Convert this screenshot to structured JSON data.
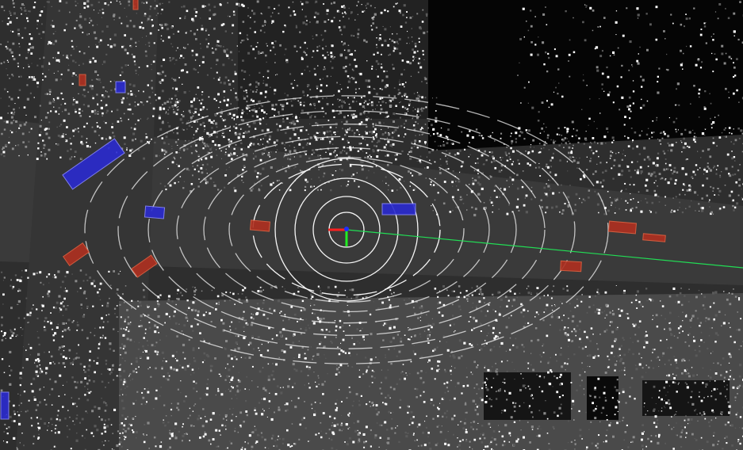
{
  "viewer": {
    "mode": "lidar-point-cloud-top-view",
    "colors": {
      "background": "#1a1a1a",
      "ground": "#3a3a3a",
      "road": "#333333",
      "building_dark": "#050505",
      "points_bright": "#ffffff",
      "points_mid": "#8a8a8a",
      "range_ring": "#ffffff",
      "path_line": "#22dd55",
      "axis_x": "#ff2020",
      "axis_y": "#22ee22",
      "axis_z": "#2030ff",
      "car_box": "#b03020",
      "bus_box": "#2a2ad0",
      "label_text": "#e8e820"
    },
    "ego": {
      "icon": "ego-vehicle-axes-icon"
    },
    "objects": [
      {
        "id": "bus-1",
        "class": "bus",
        "label": ""
      },
      {
        "id": "bus-2",
        "class": "bus",
        "label": ""
      },
      {
        "id": "bus-3",
        "class": "bus",
        "label": ""
      },
      {
        "id": "bus-4",
        "class": "bus",
        "label": ""
      },
      {
        "id": "bus-5",
        "class": "bus",
        "label": ""
      },
      {
        "id": "car-1",
        "class": "car",
        "label": ""
      },
      {
        "id": "car-2",
        "class": "car",
        "label": ""
      },
      {
        "id": "car-3",
        "class": "car",
        "label": ""
      },
      {
        "id": "car-4",
        "class": "car",
        "label": ""
      },
      {
        "id": "car-5",
        "class": "car",
        "label": ""
      },
      {
        "id": "car-6",
        "class": "car",
        "label": ""
      },
      {
        "id": "car-7",
        "class": "car",
        "label": ""
      },
      {
        "id": "car-8",
        "class": "car",
        "label": ""
      }
    ]
  }
}
